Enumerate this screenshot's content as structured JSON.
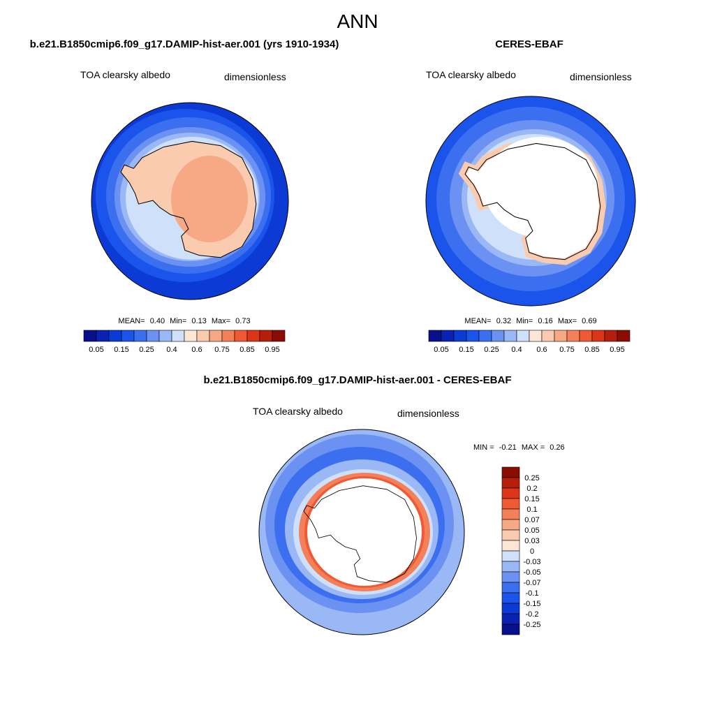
{
  "title": "ANN",
  "panels": [
    {
      "title": "b.e21.B1850cmip6.f09_g17.DAMIP-hist-aer.001 (yrs 1910-1934)",
      "variable": "TOA clearsky albedo",
      "units": "dimensionless",
      "stats": {
        "mean_label": "MEAN=",
        "mean": "0.40",
        "min_label": "Min=",
        "min": "0.13",
        "max_label": "Max=",
        "max": "0.73"
      },
      "colorbar": {
        "labels": [
          "0.05",
          "0.15",
          "0.25",
          "0.4",
          "0.6",
          "0.75",
          "0.85",
          "0.95"
        ]
      }
    },
    {
      "title": "CERES-EBAF",
      "variable": "TOA clearsky albedo",
      "units": "dimensionless",
      "stats": {
        "mean_label": "MEAN=",
        "mean": "0.32",
        "min_label": "Min=",
        "min": "0.16",
        "max_label": "Max=",
        "max": "0.69"
      },
      "colorbar": {
        "labels": [
          "0.05",
          "0.15",
          "0.25",
          "0.4",
          "0.6",
          "0.75",
          "0.85",
          "0.95"
        ]
      }
    },
    {
      "title": "b.e21.B1850cmip6.f09_g17.DAMIP-hist-aer.001 - CERES-EBAF",
      "variable": "TOA clearsky albedo",
      "units": "dimensionless",
      "stats": {
        "min_label": "MIN =",
        "min": "-0.21",
        "max_label": "MAX =",
        "max": "0.26"
      },
      "colorbar": {
        "labels": [
          "0.25",
          "0.2",
          "0.15",
          "0.1",
          "0.07",
          "0.05",
          "0.03",
          "0",
          "-0.03",
          "-0.05",
          "-0.07",
          "-0.1",
          "-0.15",
          "-0.2",
          "-0.25"
        ]
      }
    }
  ]
}
